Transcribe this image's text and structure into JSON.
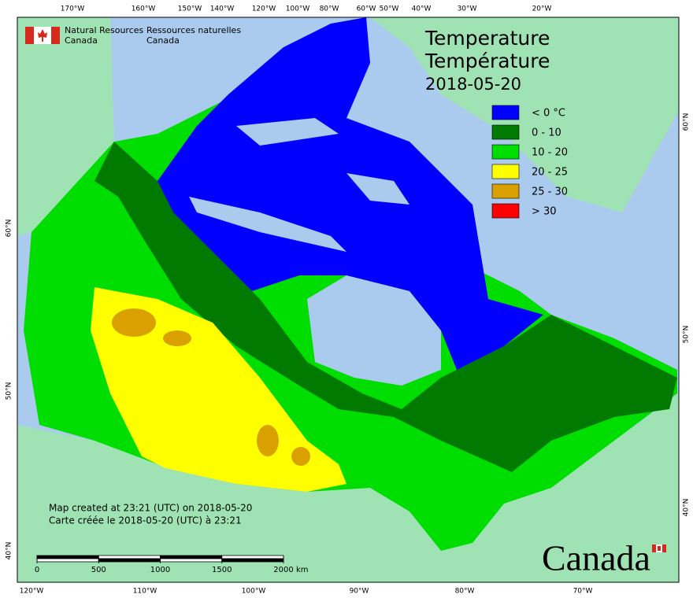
{
  "header": {
    "agency_en": [
      "Natural Resources",
      "Canada"
    ],
    "agency_fr": [
      "Ressources naturelles",
      "Canada"
    ]
  },
  "title": [
    "Temperature",
    "Température"
  ],
  "date": "2018-05-20",
  "legend": [
    {
      "label": "< 0 °C",
      "color": "#0000ff"
    },
    {
      "label": "0 - 10",
      "color": "#007a00"
    },
    {
      "label": "10 - 20",
      "color": "#00dd00"
    },
    {
      "label": "20 - 25",
      "color": "#ffff00"
    },
    {
      "label": "25 - 30",
      "color": "#d9a000"
    },
    {
      "label": "> 30",
      "color": "#ff0000"
    }
  ],
  "graticule": {
    "top": [
      "170°W",
      "160°W",
      "150°W",
      "140°W",
      "120°W",
      "100°W",
      "80°W",
      "60°W",
      "50°W",
      "40°W",
      "30°W",
      "20°W"
    ],
    "bottom": [
      "120°W",
      "110°W",
      "100°W",
      "90°W",
      "80°W",
      "70°W"
    ],
    "left": [
      "60°N",
      "50°N",
      "40°N"
    ],
    "right": [
      "60°N",
      "50°N",
      "40°N"
    ]
  },
  "credits": [
    "Map created at 23:21 (UTC) on 2018-05-20",
    "Carte créée le 2018-05-20 (UTC) à 23:21"
  ],
  "scale": {
    "ticks": [
      0,
      500,
      1000,
      1500,
      2000
    ],
    "unit": "km"
  },
  "wordmark": "Canada"
}
